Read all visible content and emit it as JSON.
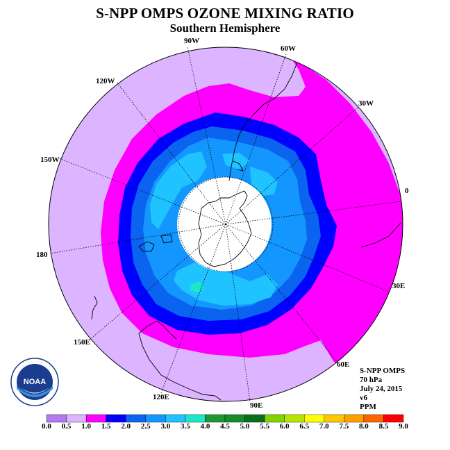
{
  "header": {
    "title": "S-NPP OMPS OZONE MIXING RATIO",
    "subtitle": "Southern Hemisphere"
  },
  "map": {
    "projection": "south-polar-stereographic",
    "longitude_labels": [
      "90W",
      "60W",
      "30W",
      "0",
      "30E",
      "60E",
      "90E",
      "120E",
      "150E",
      "180",
      "150W",
      "120W"
    ],
    "colors": {
      "ocean_land_low": "#dcb4ff",
      "band_0_5_1_0": "#dcb4ff",
      "band_1_0_1_5": "#ff00ff",
      "band_1_5_2_0": "#0000ff",
      "band_2_0_2_5": "#0a64f0",
      "band_2_5_3_0": "#1496ff",
      "band_3_0_3_5": "#1ec3ff",
      "band_3_5_4_0": "#1ee6c8",
      "polar_night": "#ffffff"
    }
  },
  "info": {
    "instrument": "S-NPP OMPS",
    "level": "70 hPa",
    "date": "July 24, 2015",
    "version": "v6",
    "units": "PPM"
  },
  "colorbar": {
    "ticks": [
      "0.0",
      "0.5",
      "1.0",
      "1.5",
      "2.0",
      "2.5",
      "3.0",
      "3.5",
      "4.0",
      "4.5",
      "5.0",
      "5.5",
      "6.0",
      "6.5",
      "7.0",
      "7.5",
      "8.0",
      "8.5",
      "9.0"
    ],
    "colors": [
      "#b478f0",
      "#dcb4ff",
      "#ff00ff",
      "#0000ff",
      "#0a64f0",
      "#1496ff",
      "#1ec3ff",
      "#1ee6c8",
      "#1e9632",
      "#148c28",
      "#0a6e1e",
      "#82d200",
      "#b4e600",
      "#ffff00",
      "#ffc800",
      "#ffa000",
      "#ff6400",
      "#ff0000",
      "#8c5a3c"
    ]
  },
  "logo": {
    "text": "NOAA",
    "ring_text": "NATIONAL OCEANIC AND ATMOSPHERIC ADMINISTRATION · U.S. DEPARTMENT OF COMMERCE"
  }
}
